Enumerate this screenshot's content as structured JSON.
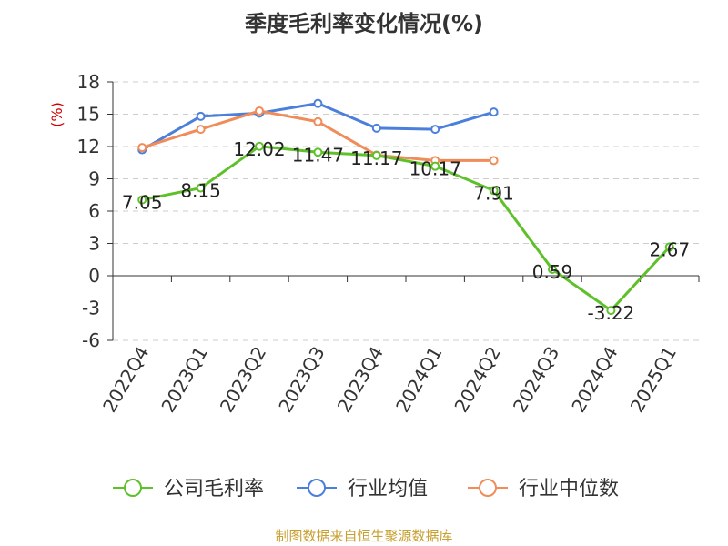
{
  "chart_data": {
    "type": "line",
    "title": "季度毛利率变化情况(%)",
    "ylabel": "(%)",
    "ylim": [
      -6,
      18
    ],
    "yticks": [
      18,
      15,
      12,
      9,
      6,
      3,
      0,
      -3,
      -6
    ],
    "grid": true,
    "legend_position": "bottom",
    "categories": [
      "2022Q4",
      "2023Q1",
      "2023Q2",
      "2023Q3",
      "2023Q4",
      "2024Q1",
      "2024Q2",
      "2024Q3",
      "2024Q4",
      "2025Q1"
    ],
    "series": [
      {
        "name": "公司毛利率",
        "color": "#5ec12a",
        "values": [
          7.05,
          8.15,
          12.02,
          11.47,
          11.17,
          10.17,
          7.91,
          0.59,
          -3.22,
          2.67
        ],
        "labels": [
          "7.05",
          "8.15",
          "12.02",
          "11.47",
          "11.17",
          "10.17",
          "7.91",
          "0.59",
          "-3.22",
          "2.67"
        ]
      },
      {
        "name": "行业均值",
        "color": "#4a7fdb",
        "values": [
          11.7,
          14.8,
          15.1,
          16.0,
          13.7,
          13.6,
          15.2,
          null,
          null,
          null
        ]
      },
      {
        "name": "行业中位数",
        "color": "#f08c5a",
        "values": [
          11.9,
          13.6,
          15.3,
          14.3,
          11.2,
          10.7,
          10.7,
          null,
          null,
          null
        ]
      }
    ]
  },
  "source": "制图数据来自恒生聚源数据库"
}
